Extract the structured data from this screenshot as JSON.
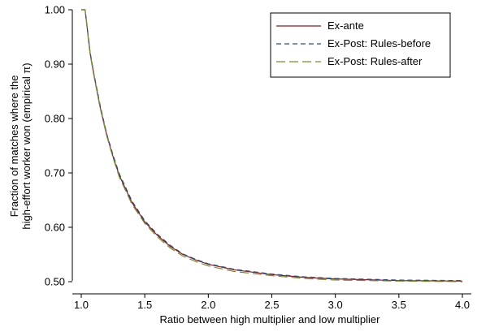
{
  "chart_data": {
    "type": "line",
    "title": "",
    "xlabel": "Ratio between high multiplier and low multiplier",
    "ylabel_lines": [
      "Fraction of matches where the",
      "high-effort worker won (empirical π)"
    ],
    "xlim": [
      1.0,
      4.0
    ],
    "ylim": [
      0.5,
      1.0
    ],
    "x_ticks": [
      "1.0",
      "1.5",
      "2.0",
      "2.5",
      "3.0",
      "3.5",
      "4.0"
    ],
    "y_ticks": [
      "0.50",
      "0.60",
      "0.70",
      "0.80",
      "0.90",
      "1.00"
    ],
    "grid": false,
    "legend_position": "top-right",
    "x": [
      1.0,
      1.03,
      1.05,
      1.07,
      1.1,
      1.15,
      1.2,
      1.25,
      1.3,
      1.4,
      1.5,
      1.6,
      1.7,
      1.8,
      1.9,
      2.0,
      2.2,
      2.5,
      2.75,
      3.0,
      3.5,
      4.0
    ],
    "series": [
      {
        "name": "Ex-ante",
        "color": "#8b1a1a",
        "dash": "solid",
        "values": [
          1.0,
          1.0,
          0.96,
          0.92,
          0.88,
          0.82,
          0.77,
          0.73,
          0.695,
          0.645,
          0.61,
          0.585,
          0.565,
          0.55,
          0.54,
          0.532,
          0.522,
          0.513,
          0.508,
          0.505,
          0.502,
          0.501
        ]
      },
      {
        "name": "Ex-Post: Rules-before",
        "color": "#2e4e7e",
        "dash": "6,4",
        "values": [
          1.0,
          1.0,
          0.962,
          0.922,
          0.882,
          0.823,
          0.772,
          0.733,
          0.698,
          0.648,
          0.612,
          0.587,
          0.567,
          0.551,
          0.541,
          0.533,
          0.523,
          0.514,
          0.509,
          0.506,
          0.503,
          0.502
        ]
      },
      {
        "name": "Ex-Post: Rules-after",
        "color": "#7a8c2e",
        "dash": "11,5",
        "values": [
          1.0,
          1.0,
          0.958,
          0.918,
          0.878,
          0.818,
          0.768,
          0.728,
          0.692,
          0.642,
          0.607,
          0.582,
          0.562,
          0.547,
          0.537,
          0.529,
          0.519,
          0.511,
          0.506,
          0.503,
          0.501,
          0.5
        ]
      }
    ]
  }
}
